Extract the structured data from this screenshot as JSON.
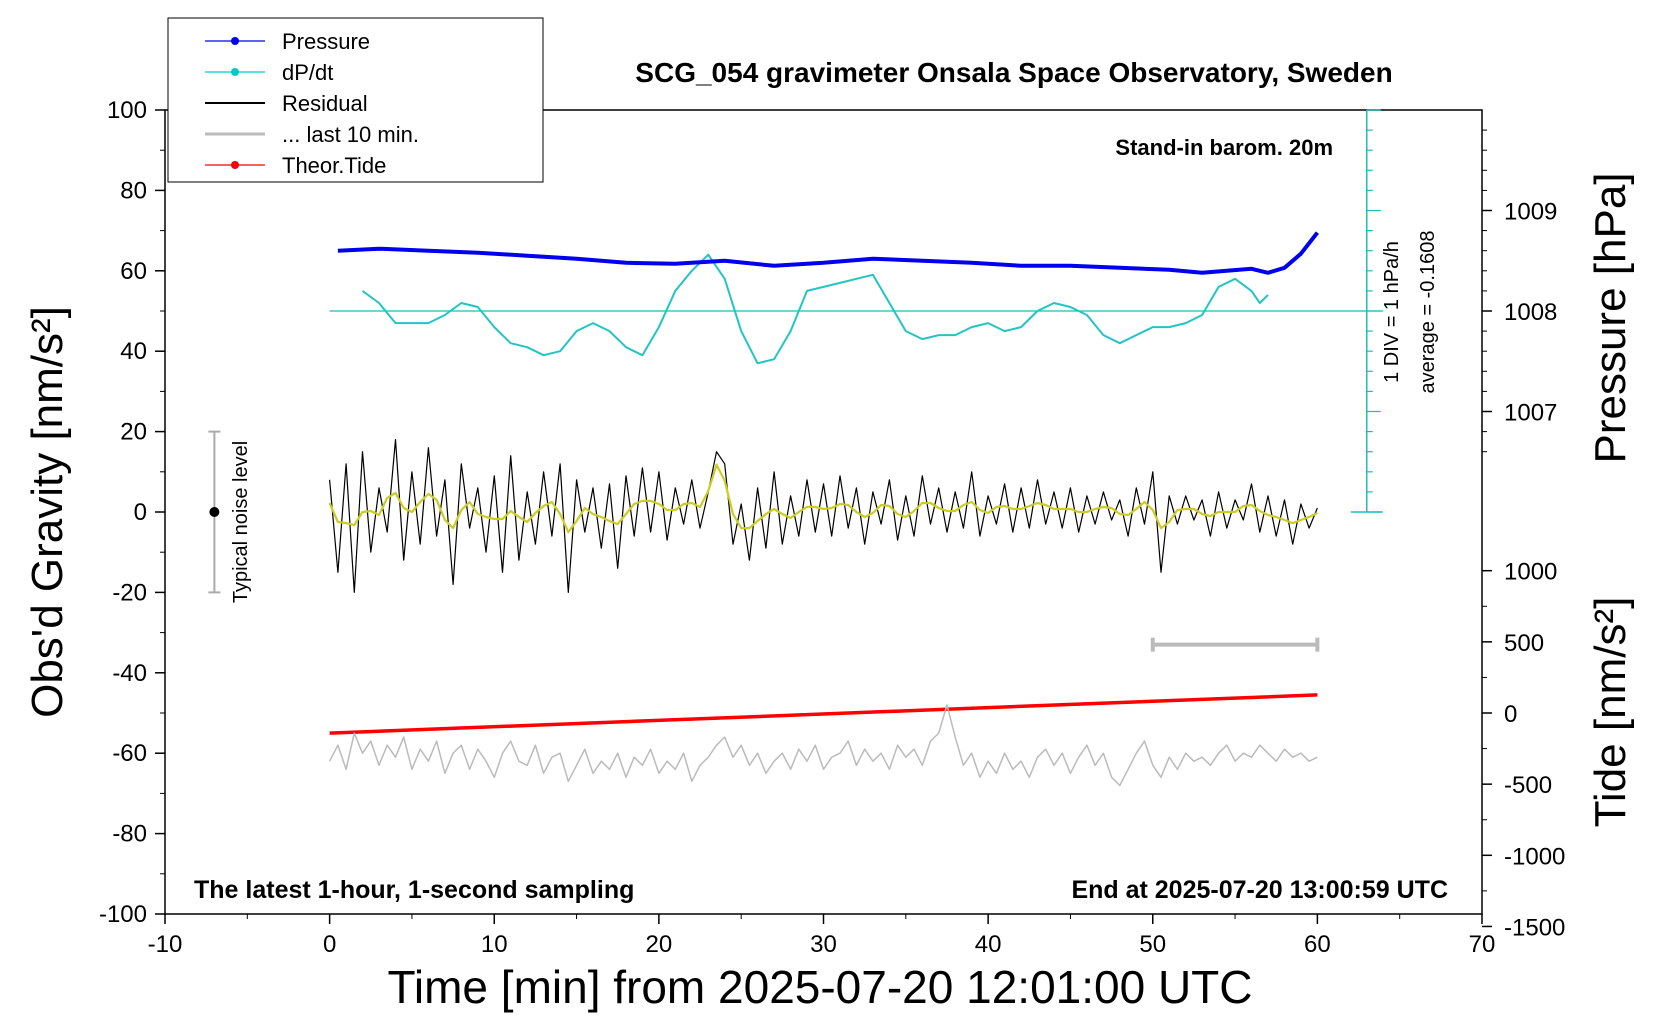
{
  "chart_data": {
    "type": "line",
    "title": "SCG_054 gravimeter Onsala Space Observatory, Sweden",
    "xlabel": "Time [min] from 2025-07-20 12:01:00 UTC",
    "ylabel_left": "Obs'd Gravity [nm/s²]",
    "ylabel_right_upper": "Pressure [hPa]",
    "ylabel_right_lower": "Tide [nm/s²]",
    "xlim": [
      -10,
      70
    ],
    "ylim": [
      -100,
      100
    ],
    "x_ticks": [
      "-10",
      "0",
      "10",
      "20",
      "30",
      "40",
      "50",
      "60",
      "70"
    ],
    "y_ticks": [
      "-100",
      "-80",
      "-60",
      "-40",
      "-20",
      "0",
      "20",
      "40",
      "60",
      "80",
      "100"
    ],
    "pressure_axis": {
      "ticks": [
        "1007",
        "1008",
        "1009"
      ],
      "values": [
        1007,
        1008,
        1009
      ]
    },
    "tide_axis": {
      "ticks": [
        "-1500",
        "-1000",
        "-500",
        "0",
        "500",
        "1000"
      ],
      "values": [
        -1500,
        -1000,
        -500,
        0,
        500,
        1000
      ]
    },
    "legend_position": "top-left",
    "legend": [
      {
        "name": "Pressure",
        "color": "#0000ff",
        "marker": true
      },
      {
        "name": "dP/dt",
        "color": "#00cccc",
        "marker": true
      },
      {
        "name": "Residual",
        "color": "#000000",
        "marker": false
      },
      {
        "name": "... last 10 min.",
        "color": "#bbbbbb",
        "marker": false
      },
      {
        "name": "Theor.Tide",
        "color": "#ff0000",
        "marker": true
      }
    ],
    "annotations": {
      "barometer": "Stand-in barom. 20m",
      "sampling": "The latest 1-hour, 1-second sampling",
      "end_time": "End at 2025-07-20 13:00:59 UTC",
      "div_note": "1 DIV = 1 hPa/h",
      "average_note": "average = -0.1608",
      "noise_label": "Typical noise level"
    },
    "series": {
      "pressure_hpa": {
        "name": "Pressure",
        "x": [
          0.5,
          3,
          6,
          9,
          12,
          15,
          18,
          21,
          24,
          27,
          30,
          33,
          36,
          39,
          42,
          45,
          48,
          51,
          53,
          54.5,
          56,
          57,
          58,
          59,
          60
        ],
        "values": [
          1008.6,
          1008.62,
          1008.6,
          1008.58,
          1008.55,
          1008.52,
          1008.48,
          1008.47,
          1008.5,
          1008.45,
          1008.48,
          1008.52,
          1008.5,
          1008.48,
          1008.45,
          1008.45,
          1008.43,
          1008.41,
          1008.38,
          1008.4,
          1008.42,
          1008.38,
          1008.43,
          1008.57,
          1008.78
        ]
      },
      "dpdt_nm": {
        "name": "dP/dt",
        "x": [
          2,
          3,
          4,
          5,
          6,
          7,
          8,
          9,
          10,
          11,
          12,
          13,
          14,
          15,
          16,
          17,
          18,
          19,
          20,
          21,
          22,
          23,
          24,
          25,
          26,
          27,
          28,
          29,
          30,
          31,
          32,
          33,
          34,
          35,
          36,
          37,
          38,
          39,
          40,
          41,
          42,
          43,
          44,
          45,
          46,
          47,
          48,
          49,
          50,
          51,
          52,
          53,
          54,
          55,
          56,
          56.5,
          57
        ],
        "values": [
          55,
          52,
          47,
          47,
          47,
          49,
          52,
          51,
          46,
          42,
          41,
          39,
          40,
          45,
          47,
          45,
          41,
          39,
          46,
          55,
          60,
          64,
          58,
          45,
          37,
          38,
          45,
          55,
          56,
          57,
          58,
          59,
          52,
          45,
          43,
          44,
          44,
          46,
          47,
          45,
          46,
          50,
          52,
          51,
          49,
          44,
          42,
          44,
          46,
          46,
          47,
          49,
          56,
          58,
          55,
          52,
          54
        ]
      },
      "residual": {
        "name": "Residual",
        "x": [
          0,
          0.5,
          1,
          1.5,
          2,
          2.5,
          3,
          3.5,
          4,
          4.5,
          5,
          5.5,
          6,
          6.5,
          7,
          7.5,
          8,
          8.5,
          9,
          9.5,
          10,
          10.5,
          11,
          11.5,
          12,
          12.5,
          13,
          13.5,
          14,
          14.5,
          15,
          15.5,
          16,
          16.5,
          17,
          17.5,
          18,
          18.5,
          19,
          19.5,
          20,
          20.5,
          21,
          21.5,
          22,
          22.5,
          23,
          23.5,
          24,
          24.5,
          25,
          25.5,
          26,
          26.5,
          27,
          27.5,
          28,
          28.5,
          29,
          29.5,
          30,
          30.5,
          31,
          31.5,
          32,
          32.5,
          33,
          33.5,
          34,
          34.5,
          35,
          35.5,
          36,
          36.5,
          37,
          37.5,
          38,
          38.5,
          39,
          39.5,
          40,
          40.5,
          41,
          41.5,
          42,
          42.5,
          43,
          43.5,
          44,
          44.5,
          45,
          45.5,
          46,
          46.5,
          47,
          47.5,
          48,
          48.5,
          49,
          49.5,
          50,
          50.5,
          51,
          51.5,
          52,
          52.5,
          53,
          53.5,
          54,
          54.5,
          55,
          55.5,
          56,
          56.5,
          57,
          57.5,
          58,
          58.5,
          59,
          59.5,
          60
        ],
        "values": [
          8,
          -15,
          12,
          -20,
          15,
          -10,
          6,
          -5,
          18,
          -12,
          10,
          -8,
          16,
          -6,
          8,
          -18,
          12,
          -4,
          6,
          -10,
          9,
          -15,
          14,
          -12,
          5,
          -8,
          10,
          -6,
          12,
          -20,
          8,
          -5,
          6,
          -9,
          7,
          -14,
          9,
          -6,
          11,
          -5,
          10,
          -7,
          6,
          -3,
          8,
          -4,
          5,
          15,
          12,
          -8,
          2,
          -12,
          6,
          -9,
          10,
          -8,
          4,
          -6,
          8,
          -5,
          7,
          -6,
          9,
          -4,
          6,
          -8,
          5,
          -3,
          8,
          -7,
          4,
          -6,
          9,
          -3,
          6,
          -5,
          5,
          -4,
          10,
          -6,
          4,
          -3,
          7,
          -5,
          6,
          -4,
          8,
          -3,
          5,
          -4,
          6,
          -5,
          4,
          -3,
          5,
          -2,
          3,
          -6,
          6,
          -3,
          10,
          -15,
          4,
          -3,
          4,
          -2,
          3,
          -6,
          5,
          -4,
          3,
          -2,
          7,
          -5,
          4,
          -6,
          3,
          -8,
          2,
          -4,
          1
        ]
      },
      "last10": {
        "name": "... last 10 min.",
        "x": [
          0,
          0.5,
          1,
          1.5,
          2,
          2.5,
          3,
          3.5,
          4,
          4.5,
          5,
          5.5,
          6,
          6.5,
          7,
          7.5,
          8,
          8.5,
          9,
          9.5,
          10,
          10.5,
          11,
          11.5,
          12,
          12.5,
          13,
          13.5,
          14,
          14.5,
          15,
          15.5,
          16,
          16.5,
          17,
          17.5,
          18,
          18.5,
          19,
          19.5,
          20,
          20.5,
          21,
          21.5,
          22,
          22.5,
          23,
          23.5,
          24,
          24.5,
          25,
          25.5,
          26,
          26.5,
          27,
          27.5,
          28,
          28.5,
          29,
          29.5,
          30,
          30.5,
          31,
          31.5,
          32,
          32.5,
          33,
          33.5,
          34,
          34.5,
          35,
          35.5,
          36,
          36.5,
          37,
          37.5,
          38,
          38.5,
          39,
          39.5,
          40,
          40.5,
          41,
          41.5,
          42,
          42.5,
          43,
          43.5,
          44,
          44.5,
          45,
          45.5,
          46,
          46.5,
          47,
          47.5,
          48,
          48.5,
          49,
          49.5,
          50,
          50.5,
          51,
          51.5,
          52,
          52.5,
          53,
          53.5,
          54,
          54.5,
          55,
          55.5,
          56,
          56.5,
          57,
          57.5,
          58,
          58.5,
          59,
          59.5,
          60
        ],
        "values": [
          -62,
          -58,
          -64,
          -55,
          -60,
          -57,
          -63,
          -58,
          -61,
          -56,
          -64,
          -59,
          -62,
          -57,
          -65,
          -60,
          -58,
          -64,
          -59,
          -62,
          -66,
          -60,
          -57,
          -62,
          -63,
          -58,
          -65,
          -61,
          -60,
          -67,
          -63,
          -59,
          -65,
          -62,
          -64,
          -60,
          -66,
          -61,
          -63,
          -59,
          -65,
          -62,
          -64,
          -60,
          -67,
          -63,
          -61,
          -58,
          -56,
          -61,
          -58,
          -63,
          -60,
          -65,
          -62,
          -60,
          -64,
          -59,
          -62,
          -58,
          -64,
          -61,
          -60,
          -57,
          -63,
          -59,
          -62,
          -60,
          -64,
          -58,
          -61,
          -59,
          -63,
          -57,
          -55,
          -48,
          -56,
          -63,
          -60,
          -66,
          -62,
          -65,
          -60,
          -64,
          -62,
          -66,
          -61,
          -59,
          -63,
          -60,
          -65,
          -61,
          -58,
          -63,
          -60,
          -66,
          -68,
          -64,
          -60,
          -57,
          -63,
          -66,
          -61,
          -64,
          -60,
          -62,
          -61,
          -63,
          -60,
          -58,
          -62,
          -60,
          -61,
          -58,
          -60,
          -62,
          -59,
          -61,
          -60,
          -62,
          -61
        ]
      },
      "theor_tide": {
        "name": "Theor.Tide",
        "x": [
          0,
          60
        ],
        "values": [
          -55,
          -45.5
        ]
      }
    },
    "noise_bar": {
      "x": -7,
      "ymin": -20,
      "ymax": 20
    },
    "ten_min_bar": {
      "x0": 50,
      "x1": 60,
      "y": -33
    },
    "dpdt_scale": {
      "x": 63,
      "ymin": 0,
      "ymax": 100,
      "baseline_y": 50
    }
  }
}
